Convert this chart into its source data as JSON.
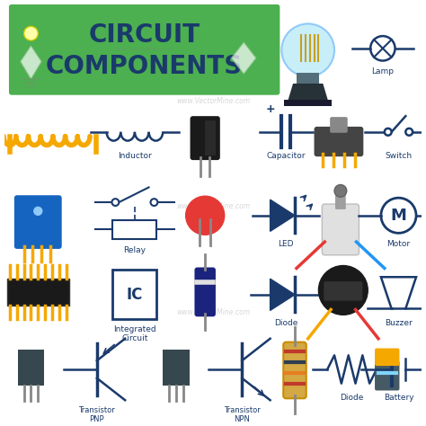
{
  "title_line1": "CIRCUIT",
  "title_line2": "COMPONENTS",
  "title_bg": "#4caf50",
  "title_text_color": "#1a3a6b",
  "bg_color": "#ffffff",
  "watermark": "www.VectorMine.com",
  "dark_blue": "#1a3a6b",
  "yellow": "#f5a800",
  "red": "#e53935",
  "light_blue": "#b3e5fc",
  "dark_gray": "#37474f",
  "nearly_black": "#212121"
}
